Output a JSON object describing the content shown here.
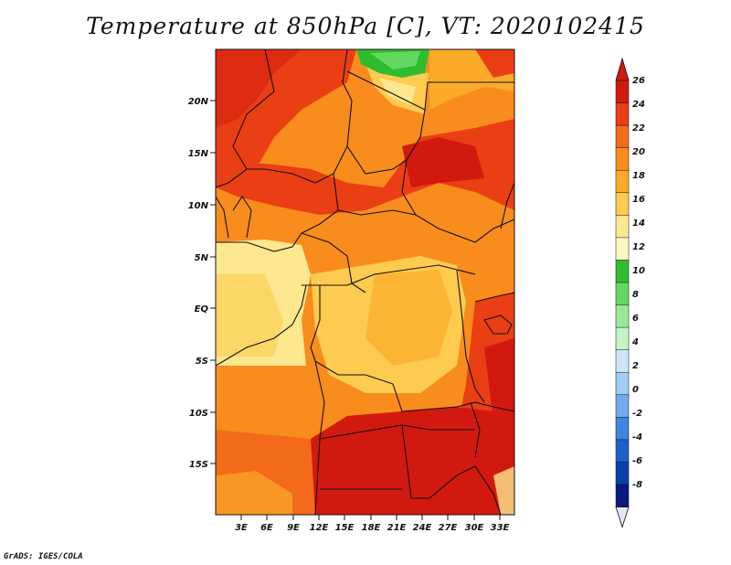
{
  "title": "Temperature at 850hPa [C], VT: 2020102415",
  "credit": "GrADS: IGES/COLA",
  "map": {
    "lat_labels": [
      "20N",
      "15N",
      "10N",
      "5N",
      "EQ",
      "5S",
      "10S",
      "15S"
    ],
    "lon_labels": [
      "3E",
      "6E",
      "9E",
      "12E",
      "15E",
      "18E",
      "21E",
      "24E",
      "27E",
      "30E",
      "33E"
    ]
  },
  "colorbar": {
    "labels": [
      "26",
      "24",
      "22",
      "20",
      "18",
      "16",
      "14",
      "12",
      "10",
      "8",
      "6",
      "4",
      "2",
      "0",
      "-2",
      "-4",
      "-6",
      "-8"
    ],
    "colors": [
      "#d2190f",
      "#ea3e14",
      "#f36a1a",
      "#f88c1c",
      "#fbaa2a",
      "#fdcb4f",
      "#fde78f",
      "#fdf7c3",
      "#2fbd2f",
      "#62d862",
      "#9ae99a",
      "#c5f4c5",
      "#cde5f7",
      "#a3cdf2",
      "#73aceb",
      "#3f86e0",
      "#1c5fcf",
      "#0b3eaf",
      "#0a1a80"
    ],
    "end_low": "#e6e6fa",
    "end_high": "#d2190f"
  }
}
